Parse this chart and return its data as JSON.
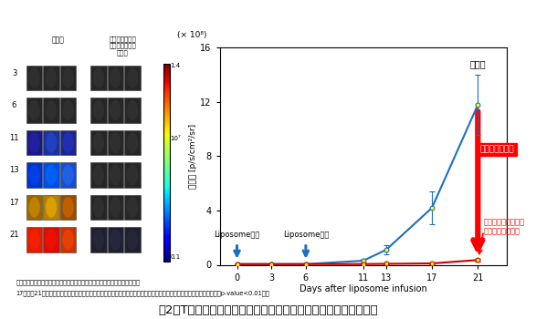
{
  "title": "図2：T細胞腫瘍マウスに対するがん指向性リポソームの効果検証",
  "xlabel": "Days after liposome infusion",
  "ylabel": "腫瘍量 [p/s/cm²/sr]",
  "ylabel_multiplier": "(× 10⁸)",
  "days": [
    0,
    3,
    6,
    11,
    13,
    17,
    21
  ],
  "control_values": [
    0.05,
    0.05,
    0.05,
    0.3,
    1.1,
    4.2,
    11.8
  ],
  "control_errors": [
    0.02,
    0.02,
    0.02,
    0.15,
    0.35,
    1.2,
    2.2
  ],
  "treatment_values": [
    0.05,
    0.05,
    0.05,
    0.05,
    0.07,
    0.1,
    0.35
  ],
  "treatment_errors": [
    0.01,
    0.01,
    0.01,
    0.03,
    0.04,
    0.05,
    0.12
  ],
  "control_color": "#1f6fbf",
  "treatment_color": "#cc0000",
  "control_marker_color": "#ffff00",
  "treatment_marker_color": "#ffff00",
  "ylim": [
    0,
    16.0
  ],
  "yticks": [
    0,
    4.0,
    8.0,
    12.0,
    16.0
  ],
  "liposome_days": [
    0,
    6
  ],
  "liposome_arrow_color": "#1f6fbf",
  "annotation_control_text": "対照群",
  "red_arrow_text": "腫瑞増悪を抑制",
  "treatment_label_text": "細胞殺傷遠伝子内包\nリポソーム投与群",
  "liposome_label": "Liposome投与",
  "footnote1": "対照群：細胞を殺傷しない無害な遠伝子を内包したリポソームを投与した群",
  "footnote2": "17日目、21日目の細胞殺傷遠伝子内包リポソームを投与群の腫瑞量は、対照群の腫瑞量の比べて有意に抑制されていた（p-value<0.01）。",
  "img_header_left": "対照群",
  "img_header_right": "細胞殺傷遠伝子\n内包リポソーム\n投与群",
  "img_ylabel": "Days after liposome infusion",
  "img_day_labels": [
    "3",
    "6",
    "11",
    "13",
    "17",
    "21"
  ],
  "colorbar_top": "1.4",
  "colorbar_mid": "10⁷",
  "colorbar_bot": "0.1",
  "background_color": "#ffffff"
}
